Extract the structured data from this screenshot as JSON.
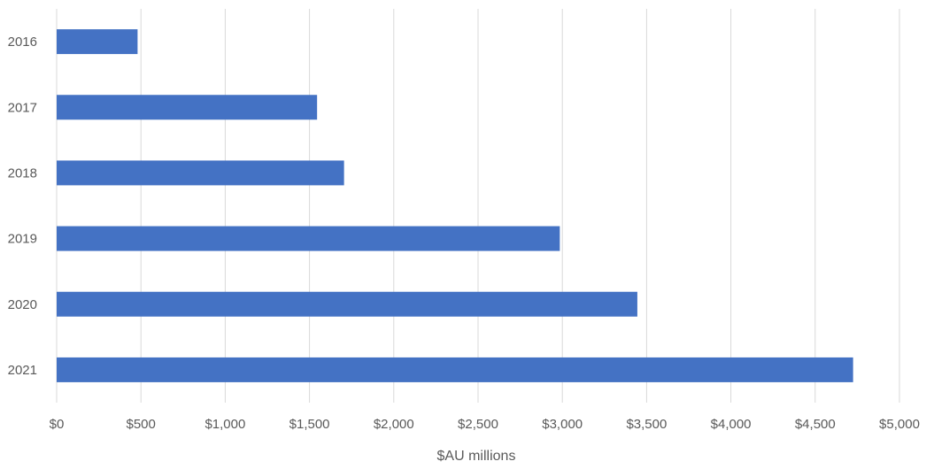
{
  "chart_data": {
    "type": "bar",
    "orientation": "horizontal",
    "categories": [
      "2016",
      "2017",
      "2018",
      "2019",
      "2020",
      "2021"
    ],
    "values": [
      480,
      1545,
      1705,
      2985,
      3445,
      4725
    ],
    "xlabel": "$AU millions",
    "ylabel": "",
    "xlim": [
      0,
      5000
    ],
    "x_ticks": [
      0,
      500,
      1000,
      1500,
      2000,
      2500,
      3000,
      3500,
      4000,
      4500,
      5000
    ],
    "x_tick_labels": [
      "$0",
      "$500",
      "$1,000",
      "$1,500",
      "$2,000",
      "$2,500",
      "$3,000",
      "$3,500",
      "$4,000",
      "$4,500",
      "$5,000"
    ],
    "grid": "vertical",
    "legend": "none",
    "bar_color": "#4472C4",
    "grid_color": "#D9D9D9"
  }
}
